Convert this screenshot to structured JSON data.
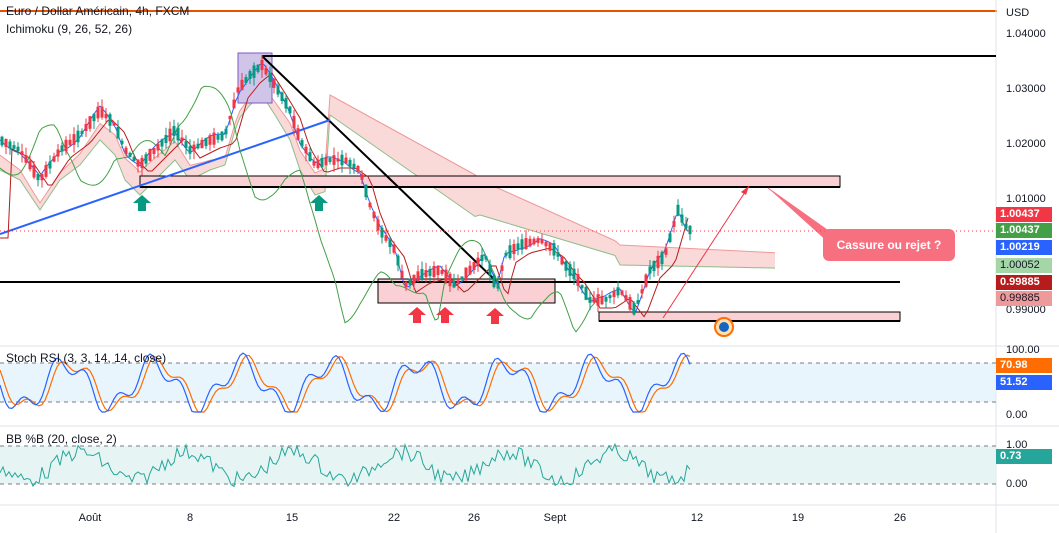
{
  "header": {
    "symbol": "Euro / Dollar Américain, 4h, FXCM",
    "indicator": "Ichimoku (9, 26, 52, 26)"
  },
  "currency": "USD",
  "panels": {
    "stoch": {
      "label": "Stoch RSI (3, 3, 14, 14, close)",
      "ticks": [
        "100.00",
        "0.00"
      ],
      "k_value": "70.98",
      "d_value": "51.52"
    },
    "bb": {
      "label": "BB %B (20, close, 2)",
      "ticks": [
        "1.00",
        "0.00"
      ],
      "value": "0.73"
    }
  },
  "price_axis": [
    "1.04000",
    "1.03000",
    "1.02000",
    "1.01000",
    "0.99000"
  ],
  "price_tags": [
    {
      "value": "1.00437",
      "color": "#f23645"
    },
    {
      "value": "1.00437",
      "color": "#43a047"
    },
    {
      "value": "1.00219",
      "color": "#2962ff"
    },
    {
      "value": "1.00052",
      "color": "#a5d6a7"
    },
    {
      "value": "0.99885",
      "color": "#b71c1c"
    },
    {
      "value": "0.99885",
      "color": "#ef9a9a"
    }
  ],
  "dates": [
    "Août",
    "8",
    "15",
    "22",
    "26",
    "Sept",
    "12",
    "19",
    "26"
  ],
  "annotation": "Cassure ou rejet ?",
  "colors": {
    "up": "#089981",
    "down": "#f23645",
    "tenkan": "#2962ff",
    "kijun": "#b71c1c",
    "lagging": "#43a047",
    "cloud_bear": "#f8c9c9",
    "cloud_bull": "#c8e6c9",
    "stoch_k": "#2962ff",
    "stoch_d": "#ff6d00",
    "bb": "#26a69a"
  },
  "chart_data": {
    "type": "candlestick",
    "title": "Euro / Dollar Américain, 4h, FXCM",
    "ylabel": "USD",
    "ylim": [
      0.9862,
      1.0418
    ],
    "x_ticks": [
      "Août",
      "8",
      "15",
      "22",
      "26",
      "Sept",
      "12",
      "19",
      "26"
    ],
    "last_close": 1.00437,
    "ichimoku": {
      "tenkan": 1.00219,
      "kijun": 0.99885,
      "senkou_a": 1.00052,
      "senkou_b": 0.99885
    },
    "levels": [
      1.036,
      0.9958
    ],
    "zones": [
      [
        1.0135,
        1.0122
      ],
      [
        0.9902,
        0.9885
      ]
    ],
    "stoch_rsi": {
      "k": 70.98,
      "d": 51.52,
      "bands": [
        80,
        20
      ]
    },
    "bb_percent_b": {
      "value": 0.73,
      "bands": [
        1.0,
        0.0
      ]
    }
  }
}
